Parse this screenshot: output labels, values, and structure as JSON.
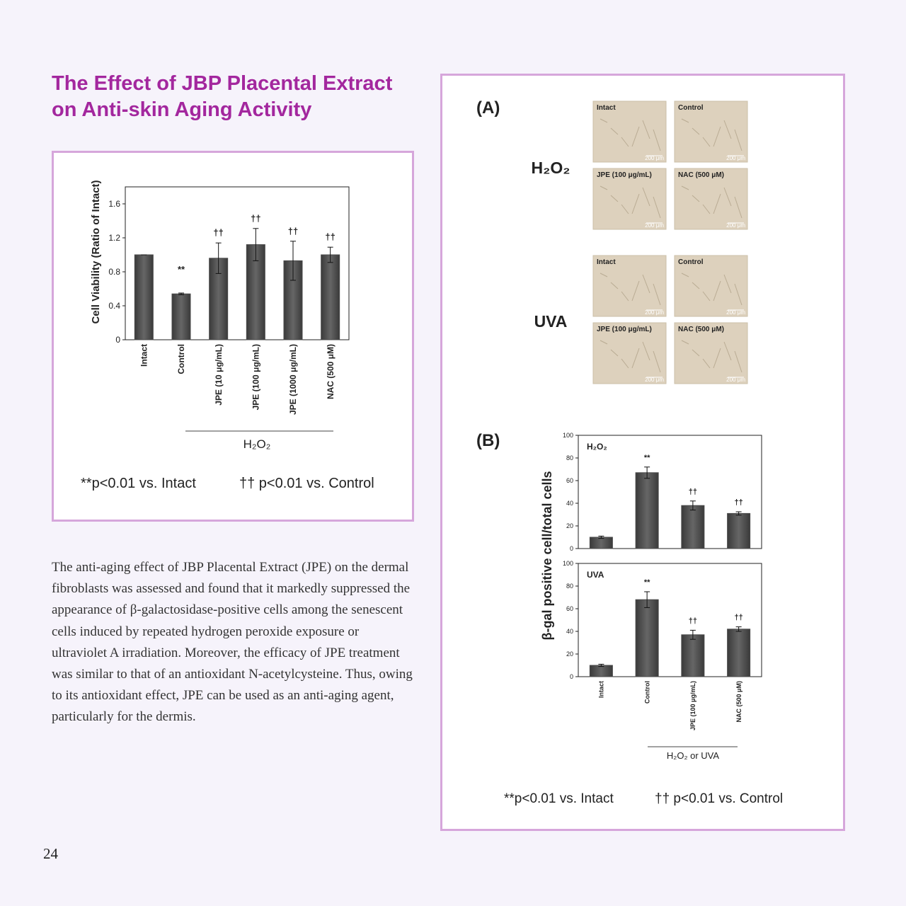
{
  "title": "The Effect of JBP Placental Extract on Anti-skin Aging Activity",
  "viability_chart": {
    "type": "bar",
    "ylabel": "Cell Viability (Ratio of Intact)",
    "categories": [
      "Intact",
      "Control",
      "JPE (10 μg/mL)",
      "JPE (100 μg/mL)",
      "JPE (1000 μg/mL)",
      "NAC (500 μM)"
    ],
    "values": [
      1.0,
      0.54,
      0.96,
      1.12,
      0.93,
      1.0
    ],
    "errors": [
      0,
      0.01,
      0.18,
      0.19,
      0.23,
      0.09
    ],
    "markers": [
      null,
      "**",
      "††",
      "††",
      "††",
      "††"
    ],
    "group_label": "H₂O₂",
    "color": "#4a4a4a",
    "ylim": [
      0,
      1.8
    ],
    "yticks": [
      0,
      0.4,
      0.8,
      1.2,
      1.6
    ],
    "footnotes": [
      "**p<0.01 vs. Intact",
      "†† p<0.01 vs. Control"
    ]
  },
  "paragraph": "The anti-aging effect of JBP Placental Extract (JPE) on the dermal fibroblasts was assessed and found that it markedly suppressed the appearance of β-galactosidase-positive cells among the senescent cells induced by repeated hydrogen peroxide exposure or ultraviolet A irradiation. Moreover, the efficacy of JPE treatment was similar to that of an antioxidant N-acetylcysteine. Thus, owing to its antioxidant effect, JPE can be used as an anti-aging agent, particularly for the dermis.",
  "panel_a": {
    "label": "(A)",
    "groups": [
      {
        "name": "H₂O₂",
        "images": [
          "Intact",
          "Control",
          "JPE (100 μg/mL)",
          "NAC (500 μM)"
        ]
      },
      {
        "name": "UVA",
        "images": [
          "Intact",
          "Control",
          "JPE (100 μg/mL)",
          "NAC (500 μM)"
        ]
      }
    ],
    "scale_bar": "200 μm"
  },
  "panel_b": {
    "label": "(B)",
    "ylabel": "β-gal positive cell/total cells",
    "categories": [
      "Intact",
      "Control",
      "JPE (100 μg/mL)",
      "NAC (500 μM)"
    ],
    "group_label": "H₂O₂ or UVA",
    "charts": [
      {
        "type": "bar",
        "title": "H₂O₂",
        "values": [
          10,
          67,
          38,
          31
        ],
        "errors": [
          1,
          5,
          4,
          1.5
        ],
        "markers": [
          null,
          "**",
          "††",
          "††"
        ],
        "color": "#4a4a4a",
        "ylim": [
          0,
          100
        ],
        "yticks": [
          0,
          20,
          40,
          60,
          80,
          100
        ]
      },
      {
        "type": "bar",
        "title": "UVA",
        "values": [
          10,
          68,
          37,
          42
        ],
        "errors": [
          1,
          7,
          4,
          2
        ],
        "markers": [
          null,
          "**",
          "††",
          "††"
        ],
        "color": "#4a4a4a",
        "ylim": [
          0,
          100
        ],
        "yticks": [
          0,
          20,
          40,
          60,
          80,
          100
        ]
      }
    ],
    "footnotes": [
      "**p<0.01 vs. Intact",
      "†† p<0.01 vs. Control"
    ]
  },
  "page_number": "24"
}
